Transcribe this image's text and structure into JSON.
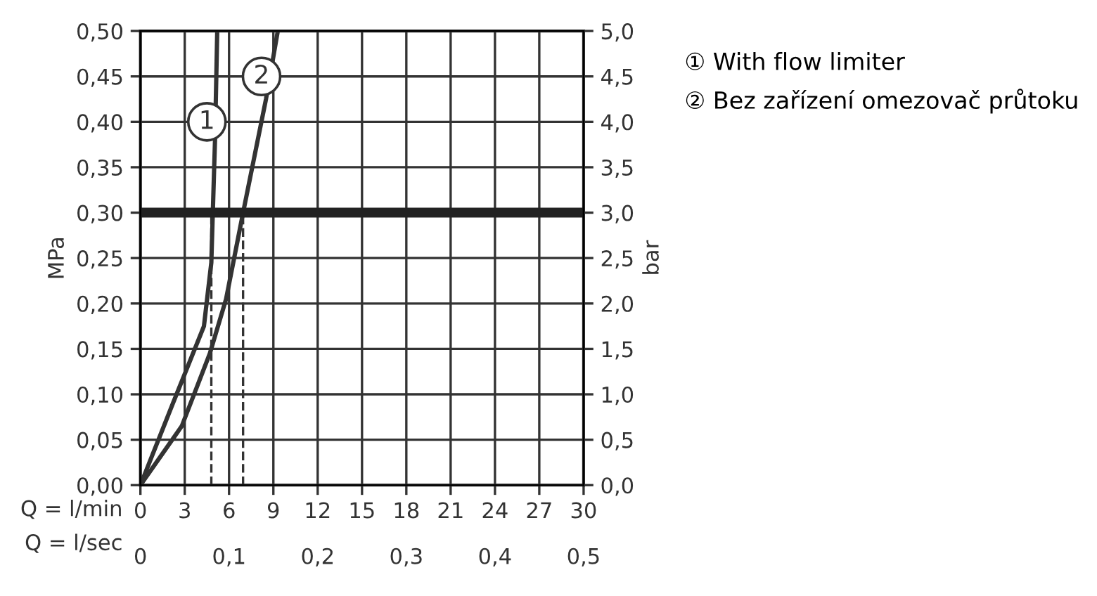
{
  "chart_data": {
    "type": "line",
    "xlabel": "Q = l/min",
    "x2label": "Q = l/sec",
    "ylabel": "MPa",
    "y2label": "bar",
    "xlim": [
      0,
      30
    ],
    "xticks": [
      0,
      3,
      6,
      9,
      12,
      15,
      18,
      21,
      24,
      27,
      30
    ],
    "x2lim": [
      0,
      0.5
    ],
    "x2ticks": [
      0,
      {
        "value": 0.1,
        "label": "0,1"
      },
      {
        "value": 0.2,
        "label": "0,2"
      },
      {
        "value": 0.3,
        "label": "0,3"
      },
      {
        "value": 0.4,
        "label": "0,4"
      },
      {
        "value": 0.5,
        "label": "0,5"
      }
    ],
    "ylim": [
      0,
      0.5
    ],
    "yticks": [
      {
        "value": 0,
        "label": "0,00"
      },
      {
        "value": 0.05,
        "label": "0,05"
      },
      {
        "value": 0.1,
        "label": "0,10"
      },
      {
        "value": 0.15,
        "label": "0,15"
      },
      {
        "value": 0.2,
        "label": "0,20"
      },
      {
        "value": 0.25,
        "label": "0,25"
      },
      {
        "value": 0.3,
        "label": "0,30"
      },
      {
        "value": 0.35,
        "label": "0,35"
      },
      {
        "value": 0.4,
        "label": "0,40"
      },
      {
        "value": 0.45,
        "label": "0,45"
      },
      {
        "value": 0.5,
        "label": "0,50"
      }
    ],
    "y2lim": [
      0,
      5
    ],
    "y2ticks": [
      {
        "value": 0,
        "label": "0,0"
      },
      {
        "value": 0.5,
        "label": "0,5"
      },
      {
        "value": 1,
        "label": "1,0"
      },
      {
        "value": 1.5,
        "label": "1,5"
      },
      {
        "value": 2,
        "label": "2,0"
      },
      {
        "value": 2.5,
        "label": "2,5"
      },
      {
        "value": 3,
        "label": "3,0"
      },
      {
        "value": 3.5,
        "label": "3,5"
      },
      {
        "value": 4,
        "label": "4,0"
      },
      {
        "value": 4.5,
        "label": "4,5"
      },
      {
        "value": 5,
        "label": "5,0"
      }
    ],
    "grid": true,
    "legend": "right",
    "marker": "none",
    "line_style": "solid",
    "series": [
      {
        "name": "① With flow limiter",
        "color": "#333333",
        "x": [
          0,
          2.2,
          4.3,
          4.8,
          4.9,
          5.05,
          5.2
        ],
        "values": [
          0,
          0.09,
          0.175,
          0.245,
          0.3,
          0.38,
          0.5
        ]
      },
      {
        "name": "② Bez zařízení omezovač průtoku",
        "color": "#333333",
        "x": [
          0,
          2.8,
          4.7,
          5.8,
          6.95,
          8.5,
          9.3
        ],
        "values": [
          0,
          0.065,
          0.145,
          0.205,
          0.3,
          0.425,
          0.5
        ]
      }
    ],
    "ref_lines": [
      {
        "axis": "y",
        "value": 0.3,
        "color": "#222222",
        "line_style": "solid"
      },
      {
        "axis": "x",
        "value": 4.8,
        "color": "#333333",
        "line_style": "dashed"
      },
      {
        "axis": "x",
        "value": 6.95,
        "color": "#333333",
        "line_style": "dashed"
      }
    ],
    "annotations": [
      {
        "text": "1",
        "x": 4.5,
        "y": 0.4
      },
      {
        "text": "2",
        "x": 8.2,
        "y": 0.45
      }
    ]
  }
}
